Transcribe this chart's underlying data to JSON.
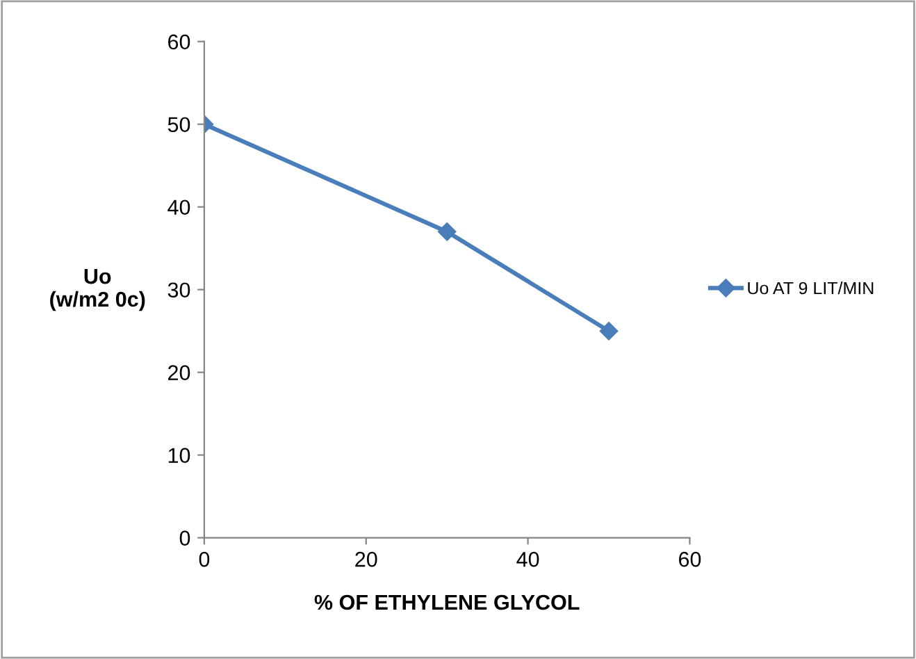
{
  "chart_data": {
    "type": "line",
    "xlabel": "% OF ETHYLENE GLYCOL",
    "ylabel": "Uo\n(w/m2 0c)",
    "x": [
      0,
      30,
      50
    ],
    "series": [
      {
        "name": "Uo AT 9 LIT/MIN",
        "color": "#4a7ebb",
        "values": [
          50,
          37,
          25
        ]
      }
    ],
    "xlim": [
      0,
      60
    ],
    "xticks": [
      0,
      20,
      40,
      60
    ],
    "ylim": [
      0,
      60
    ],
    "yticks": [
      0,
      10,
      20,
      30,
      40,
      50,
      60
    ],
    "grid": false,
    "legend": "right",
    "marker": "diamond",
    "line_style": "solid"
  }
}
